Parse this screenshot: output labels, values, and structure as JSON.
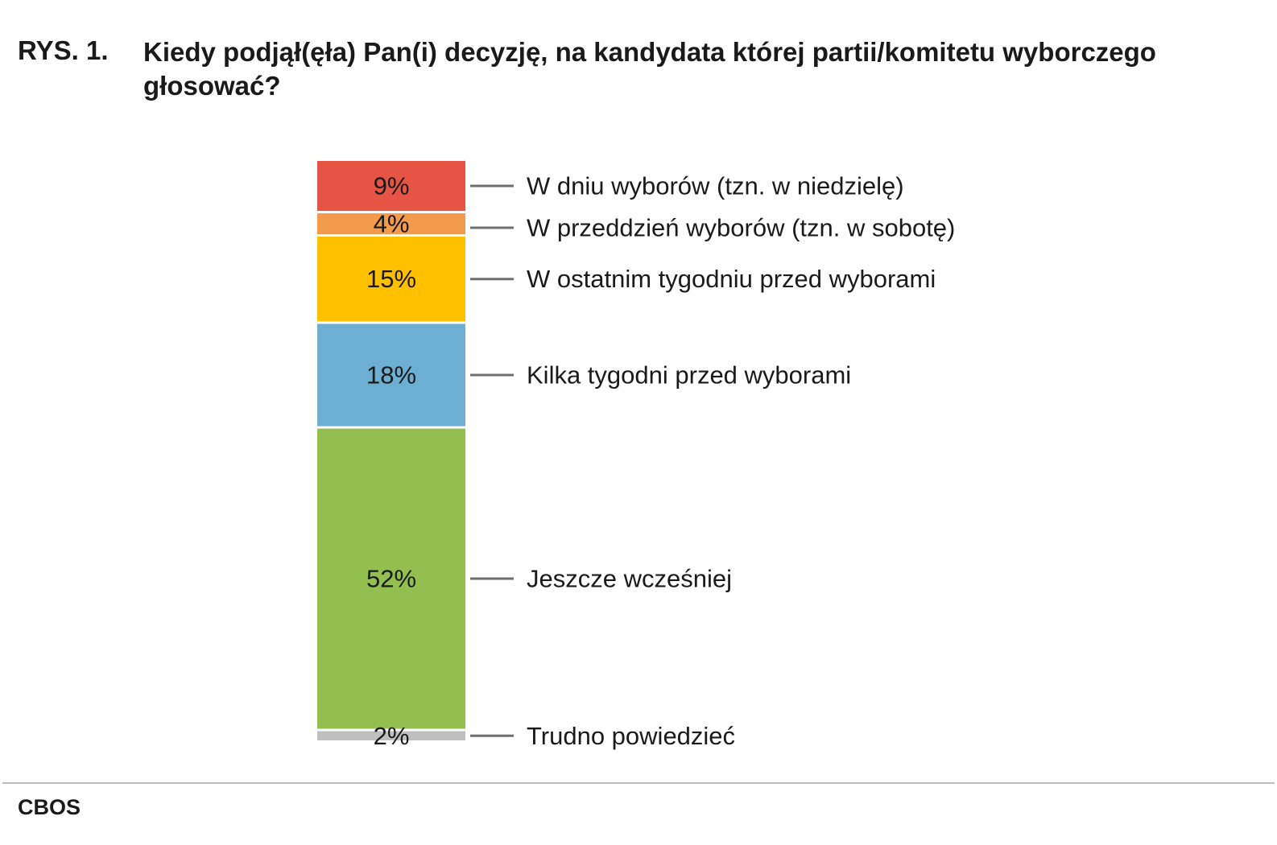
{
  "figure": {
    "label": "RYS. 1.",
    "title": "Kiedy podjął(ęła) Pan(i) decyzję, na kandydata której partii/komitetu wyborczego głosować?"
  },
  "source": "CBOS",
  "chart_data": {
    "type": "bar",
    "stacked": true,
    "unit": "%",
    "total": 100,
    "categories": [
      "W dniu wyborów (tzn. w niedzielę)",
      "W przeddzień wyborów (tzn. w sobotę)",
      "W ostatnim tygodniu przed wyborami",
      "Kilka tygodni przed wyborami",
      "Jeszcze wcześniej",
      "Trudno powiedzieć"
    ],
    "values": [
      9,
      4,
      15,
      18,
      52,
      2
    ],
    "labels": [
      "9%",
      "4%",
      "15%",
      "18%",
      "52%",
      "2%"
    ],
    "colors": [
      "#e65444",
      "#f39a4d",
      "#ffc000",
      "#6daed3",
      "#93bf50",
      "#bfbfbf"
    ],
    "order": "top-to-bottom",
    "legend": "right, with leader lines"
  }
}
